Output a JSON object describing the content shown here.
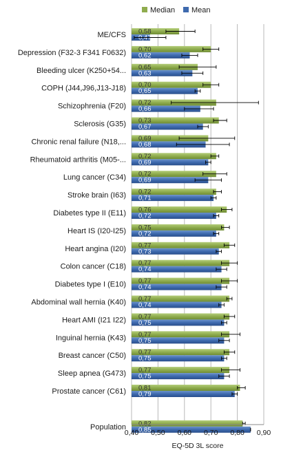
{
  "chart_data": {
    "type": "bar",
    "orientation": "horizontal",
    "xlabel": "EQ-5D 3L score",
    "ylabel": "",
    "xlim": [
      0.4,
      0.9
    ],
    "x_ticks": [
      "0,40",
      "0,50",
      "0,60",
      "0,70",
      "0,80",
      "0,90"
    ],
    "x_tick_values": [
      0.4,
      0.5,
      0.6,
      0.7,
      0.8,
      0.9
    ],
    "grid": "vertical",
    "legend": {
      "position": "top",
      "entries": [
        "Median",
        "Mean"
      ]
    },
    "colors": {
      "Median": "#8fac4e",
      "Mean": "#3e6aae",
      "grid": "#b8b8b8",
      "text": "#1a1a1a",
      "whisker": "#000000"
    },
    "categories": [
      "ME/CFS",
      "Depression (F32-3 F341 F0632)",
      "Bleeding ulcer (K250+54...",
      "COPH (J44,J96,J13-J18)",
      "Schizophrenia (F20)",
      "Sclerosis (G35)",
      "Chronic renal failure (N18,...",
      "Rheumatoid arthritis (M05-...",
      "Lung cancer (C34)",
      "Stroke brain (I63)",
      "Diabetes type II (E11)",
      "Heart IS (I20-I25)",
      "Heart angina (I20)",
      "Colon cancer (C18)",
      "Diabetes type I (E10)",
      "Abdominal wall hernia (K40)",
      "Heart AMI (I21 I22)",
      "Inguinal hernia (K43)",
      "Breast cancer (C50)",
      "Sleep apnea (G473)",
      "Prostate cancer (C61)",
      "",
      "Population"
    ],
    "series": [
      {
        "name": "Median",
        "values": [
          0.58,
          0.7,
          0.65,
          0.7,
          0.72,
          0.73,
          0.69,
          0.72,
          0.72,
          0.72,
          0.76,
          0.75,
          0.77,
          0.77,
          0.77,
          0.77,
          0.77,
          0.77,
          0.77,
          0.77,
          0.81,
          null,
          0.82
        ],
        "labels": [
          "0,58",
          "0,70",
          "0,65",
          "0,70",
          "0,72",
          "0,73",
          "0,69",
          "0,72",
          "0,72",
          "0,72",
          "0,76",
          "0,75",
          "0,77",
          "0,77",
          "0,77",
          "0,77",
          "0,77",
          "0,77",
          "0,77",
          "0,77",
          "0,81",
          "",
          "0,82"
        ],
        "error_low": [
          0.53,
          0.67,
          0.58,
          0.67,
          0.55,
          0.71,
          0.58,
          0.7,
          0.67,
          0.71,
          0.74,
          0.74,
          0.75,
          0.74,
          0.74,
          0.76,
          0.75,
          0.74,
          0.75,
          0.74,
          0.8,
          null,
          0.82
        ],
        "error_high": [
          0.64,
          0.73,
          0.72,
          0.73,
          0.88,
          0.76,
          0.79,
          0.73,
          0.76,
          0.74,
          0.78,
          0.77,
          0.79,
          0.8,
          0.8,
          0.78,
          0.79,
          0.81,
          0.79,
          0.81,
          0.83,
          null,
          0.83
        ]
      },
      {
        "name": "Mean",
        "values": [
          0.47,
          0.62,
          0.63,
          0.65,
          0.66,
          0.67,
          0.68,
          0.69,
          0.69,
          0.71,
          0.72,
          0.72,
          0.73,
          0.74,
          0.74,
          0.74,
          0.75,
          0.75,
          0.75,
          0.75,
          0.79,
          null,
          0.85
        ],
        "labels": [
          "0,47",
          "0,62",
          "0,63",
          "0,65",
          "0,66",
          "0,67",
          "0,68",
          "0,69",
          "0,69",
          "0,71",
          "0,72",
          "0,72",
          "0,73",
          "0,74",
          "0,74",
          "0,74",
          "0,75",
          "0,75",
          "0,75",
          "0,75",
          "0,79",
          "",
          "0,85"
        ],
        "error_low": [
          0.41,
          0.59,
          0.59,
          0.64,
          0.6,
          0.65,
          0.57,
          0.68,
          0.64,
          0.7,
          0.71,
          0.71,
          0.72,
          0.72,
          0.72,
          0.73,
          0.74,
          0.73,
          0.74,
          0.73,
          0.78,
          null,
          0.85
        ],
        "error_high": [
          0.53,
          0.65,
          0.67,
          0.66,
          0.71,
          0.69,
          0.77,
          0.7,
          0.74,
          0.72,
          0.73,
          0.73,
          0.74,
          0.76,
          0.76,
          0.75,
          0.76,
          0.77,
          0.76,
          0.77,
          0.8,
          null,
          0.85
        ]
      }
    ]
  }
}
